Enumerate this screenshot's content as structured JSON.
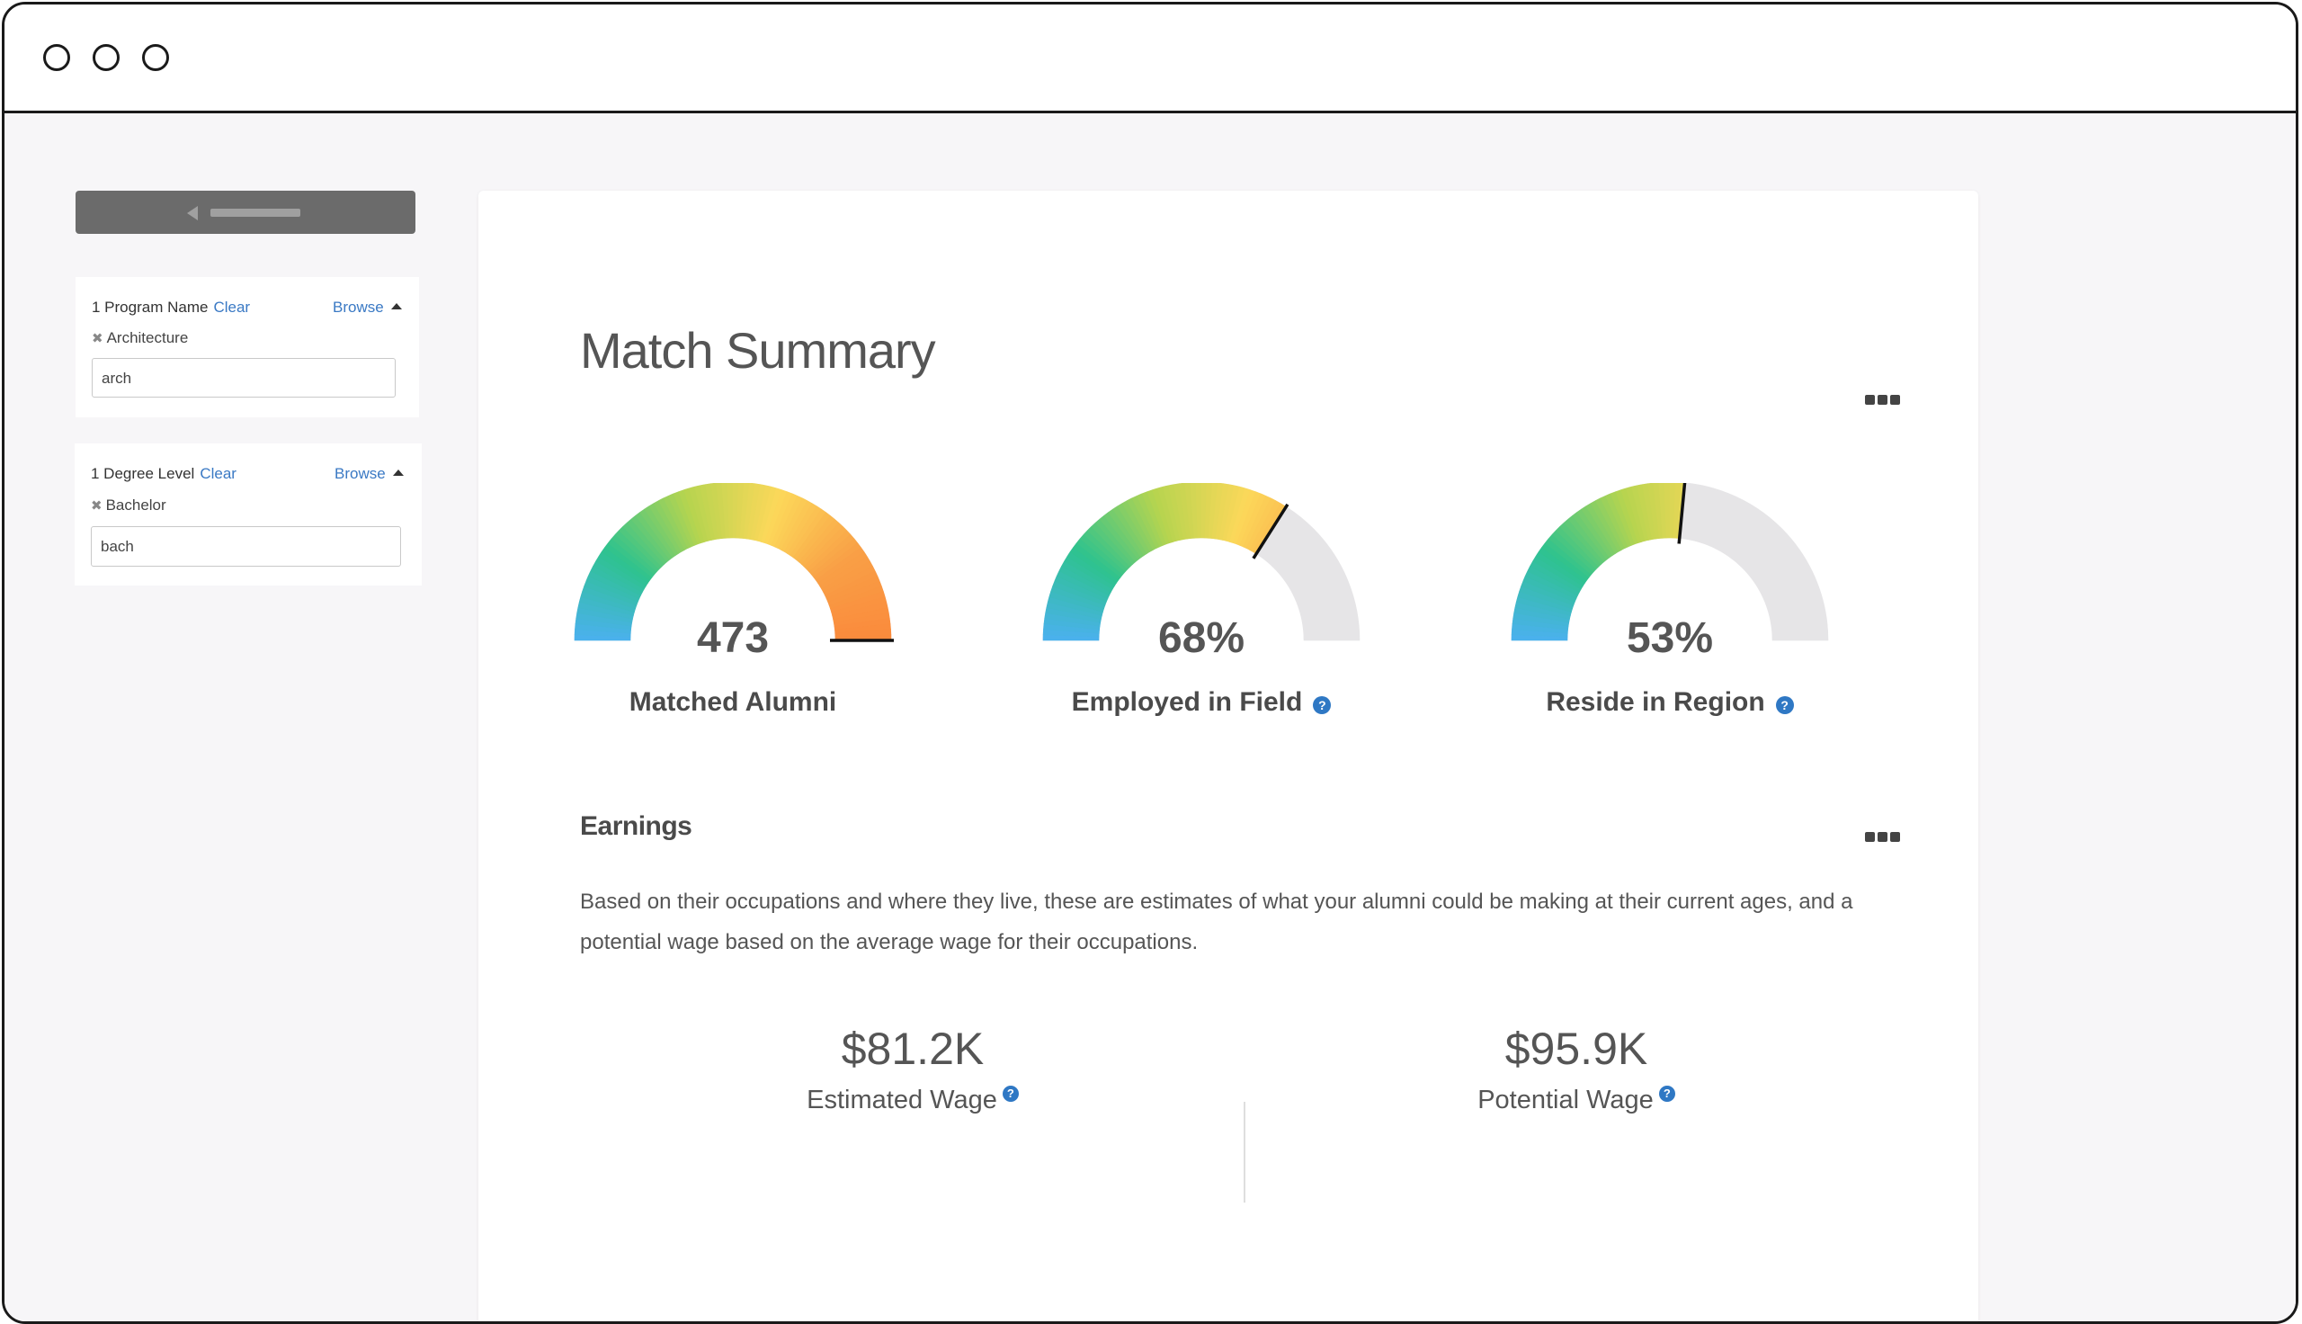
{
  "sidebar": {
    "filters": [
      {
        "heading": "1 Program Name",
        "clear_label": "Clear",
        "browse_label": "Browse",
        "chip": "Architecture",
        "input_value": "arch"
      },
      {
        "heading": "1 Degree Level",
        "clear_label": "Clear",
        "browse_label": "Browse",
        "chip": "Bachelor",
        "input_value": "bach"
      }
    ]
  },
  "main": {
    "title": "Match Summary",
    "gauges": [
      {
        "value_text": "473",
        "label": "Matched Alumni",
        "fill_fraction": 1.0
      },
      {
        "value_text": "68%",
        "label": "Employed in Field",
        "fill_fraction": 0.68
      },
      {
        "value_text": "53%",
        "label": "Reside in Region",
        "fill_fraction": 0.53
      }
    ],
    "help_glyph": "?",
    "earnings": {
      "title": "Earnings",
      "description": "Based on their occupations and where they live, these are estimates of what your alumni could be making at their current ages, and a potential wage based on the average wage for their occupations.",
      "estimated": {
        "amount": "$81.2K",
        "label": "Estimated Wage"
      },
      "potential": {
        "amount": "$95.9K",
        "label": "Potential Wage"
      }
    }
  },
  "colors": {
    "link": "#3a79c4",
    "help_icon": "#2f78c4",
    "gauge_track": "#e6e5e7",
    "gauge_gradient": [
      "#4bb1ef",
      "#2ec28e",
      "#b6d44f",
      "#fcd85a",
      "#f9a046",
      "#fa8a3c"
    ]
  }
}
